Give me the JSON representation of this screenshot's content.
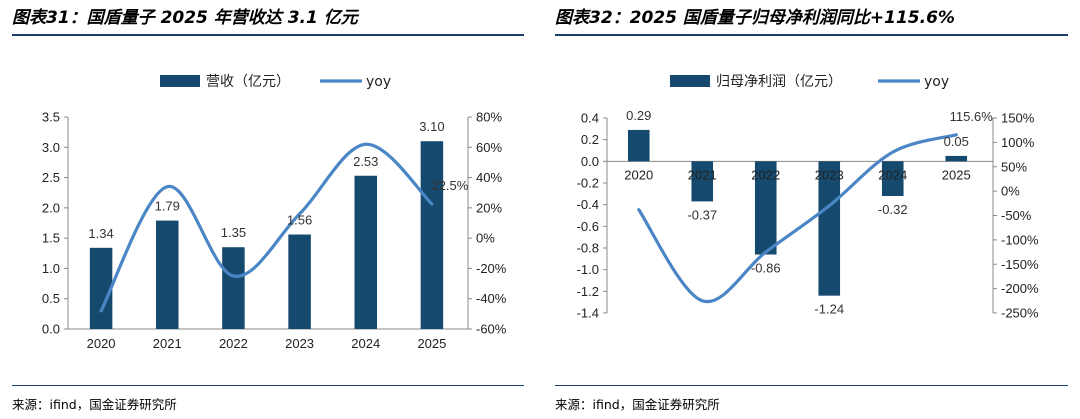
{
  "titles": {
    "left": "图表31：国盾量子 2025 年营收达 3.1 亿元",
    "right": "图表32：2025 国盾量子归母净利润同比+115.6%"
  },
  "sources": {
    "left": "来源：ifind，国金证券研究所",
    "right": "来源：ifind，国金证券研究所"
  },
  "colors": {
    "bar": "#154a6e",
    "line": "#4a86c5",
    "rule": "#1b3f6b"
  },
  "chart_data": [
    {
      "type": "bar+line",
      "categories": [
        "2020",
        "2021",
        "2022",
        "2023",
        "2024",
        "2025"
      ],
      "series": [
        {
          "name": "营收（亿元）",
          "kind": "bar",
          "axis": "left",
          "values": [
            1.34,
            1.79,
            1.35,
            1.56,
            2.53,
            3.1
          ],
          "labels": [
            "1.34",
            "1.79",
            "1.35",
            "1.56",
            "2.53",
            "3.10"
          ]
        },
        {
          "name": "yoy",
          "kind": "line",
          "axis": "right",
          "values": [
            -48,
            34,
            -25,
            16,
            62,
            22.5
          ],
          "labels": [
            "",
            "",
            "",
            "",
            "",
            "22.5%"
          ]
        }
      ],
      "ylim_left": [
        0,
        3.5
      ],
      "yticks_left": [
        "0.0",
        "0.5",
        "1.0",
        "1.5",
        "2.0",
        "2.5",
        "3.0",
        "3.5"
      ],
      "ylim_right": [
        -60,
        80
      ],
      "yticks_right": [
        "-60%",
        "-40%",
        "-20%",
        "0%",
        "20%",
        "40%",
        "60%",
        "80%"
      ],
      "legend": "top-center"
    },
    {
      "type": "bar+line",
      "categories": [
        "2020",
        "2021",
        "2022",
        "2023",
        "2024",
        "2025"
      ],
      "series": [
        {
          "name": "归母净利润（亿元）",
          "kind": "bar",
          "axis": "left",
          "values": [
            0.29,
            -0.37,
            -0.86,
            -1.24,
            -0.32,
            0.05
          ],
          "labels": [
            "0.29",
            "-0.37",
            "-0.86",
            "-1.24",
            "-0.32",
            "0.05"
          ]
        },
        {
          "name": "yoy",
          "kind": "line",
          "axis": "right",
          "values": [
            -38,
            -225,
            -125,
            -30,
            80,
            115.6
          ],
          "labels": [
            "",
            "",
            "",
            "",
            "",
            "115.6%"
          ]
        }
      ],
      "ylim_left": [
        -1.4,
        0.4
      ],
      "yticks_left": [
        "-1.4",
        "-1.2",
        "-1.0",
        "-0.8",
        "-0.6",
        "-0.4",
        "-0.2",
        "0.0",
        "0.2",
        "0.4"
      ],
      "ylim_right": [
        -250,
        150
      ],
      "yticks_right": [
        "-250%",
        "-200%",
        "-150%",
        "-100%",
        "-50%",
        "0%",
        "50%",
        "100%",
        "150%"
      ],
      "legend": "top-center"
    }
  ]
}
